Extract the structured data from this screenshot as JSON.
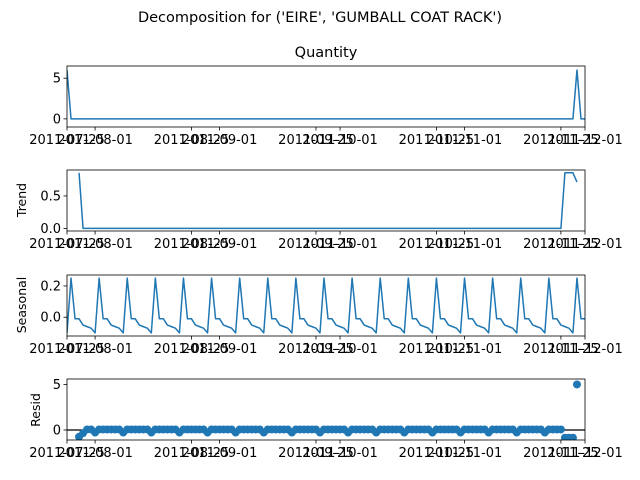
{
  "chart_data": {
    "type": "line",
    "suptitle": "Decomposition for ('EIRE', 'GUMBALL COAT RACK')",
    "date_ticks": [
      "2011-07-25",
      "2011-08-01",
      "2011-08-25",
      "2011-09-01",
      "2011-09-25",
      "2011-10-01",
      "2011-10-25",
      "2011-11-01",
      "2011-11-25",
      "2011-12-01"
    ],
    "date_tick_labels": [
      "2011-07-25",
      "2011-08-01",
      "2011-08-25",
      "2011-09-01",
      "2011-09-25",
      "2011-10-01",
      "2011-10-25",
      "2011-11-01",
      "2011-11-25",
      "2011-12-01"
    ],
    "x_range": [
      "2011-07-25",
      "2011-12-01"
    ],
    "line_color": "#1f77b4",
    "zero_line_color": "#000000",
    "panels": [
      {
        "name": "quantity",
        "type": "line",
        "title": "Quantity",
        "ylabel": "",
        "ylim": [
          -1.0,
          6.5
        ],
        "yticks": [
          0,
          5
        ],
        "ytick_labels": [
          "0",
          "5"
        ],
        "points": [
          [
            "2011-07-25",
            6
          ],
          [
            "2011-07-26",
            0
          ],
          [
            "2011-11-28",
            0
          ],
          [
            "2011-11-29",
            6
          ],
          [
            "2011-11-30",
            0
          ],
          [
            "2011-12-01",
            0
          ],
          [
            "2011-12-02",
            -1
          ]
        ]
      },
      {
        "name": "trend",
        "type": "line",
        "title": "",
        "ylabel": "Trend",
        "ylim": [
          -0.04,
          0.9
        ],
        "yticks": [
          0.0,
          0.5
        ],
        "ytick_labels": [
          "0.0",
          "0.5"
        ],
        "points": [
          [
            "2011-07-28",
            0.857
          ],
          [
            "2011-07-29",
            0.0
          ],
          [
            "2011-11-25",
            0.0
          ],
          [
            "2011-11-26",
            0.857
          ],
          [
            "2011-11-28",
            0.857
          ],
          [
            "2011-11-29",
            0.714
          ]
        ]
      },
      {
        "name": "seasonal",
        "type": "line",
        "title": "",
        "ylabel": "Seasonal",
        "ylim": [
          -0.12,
          0.27
        ],
        "yticks": [
          0.0,
          0.2
        ],
        "ytick_labels": [
          "0.0",
          "0.2"
        ],
        "period": 7,
        "first_date": "2011-07-25",
        "last_date": "2011-12-02",
        "pattern": [
          -0.05,
          -0.06,
          -0.07,
          -0.1,
          0.25,
          -0.01,
          -0.01
        ],
        "phase_offset": 3
      },
      {
        "name": "resid",
        "type": "scatter",
        "title": "",
        "ylabel": "Resid",
        "ylim": [
          -1.1,
          5.6
        ],
        "yticks": [
          0,
          5
        ],
        "ytick_labels": [
          "0",
          "5"
        ],
        "baseline": 0,
        "first_date": "2011-07-28",
        "last_date": "2011-11-28",
        "pattern": [
          0.06,
          0.06,
          0.06,
          0.06,
          -0.28,
          0.06,
          0.06
        ],
        "phase_offset": 0,
        "special": [
          [
            "2011-07-28",
            -0.75
          ],
          [
            "2011-07-29",
            -0.35
          ],
          [
            "2011-11-26",
            -0.85
          ],
          [
            "2011-11-27",
            -0.85
          ],
          [
            "2011-11-28",
            -0.85
          ],
          [
            "2011-11-29",
            5.0
          ]
        ]
      }
    ]
  }
}
